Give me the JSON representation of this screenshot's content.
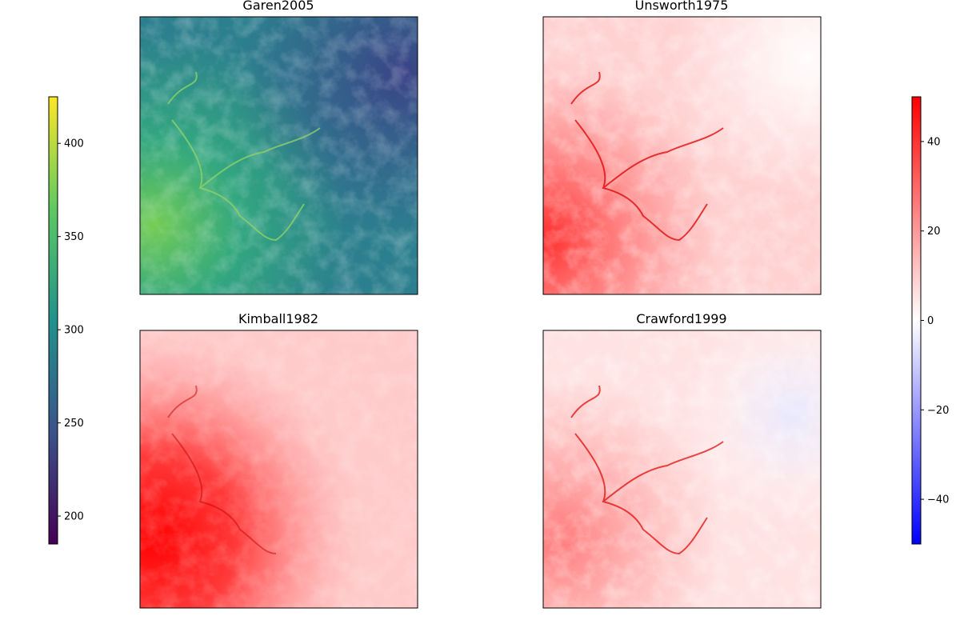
{
  "chart_data": [
    {
      "type": "heatmap",
      "title": "Garen2005",
      "xlabel": "",
      "ylabel": "",
      "grid": false,
      "colormap": "viridis",
      "shared_colorbar": "left",
      "colorbar_range": [
        185,
        425
      ],
      "description_of_values": "gridded raster, higher values along incised valleys in the west/southwest, lower values in the northeast"
    },
    {
      "type": "heatmap",
      "title": "Unsworth1975",
      "xlabel": "",
      "ylabel": "",
      "grid": false,
      "colormap": "bwr",
      "shared_colorbar": "right",
      "colorbar_range": [
        -50,
        50
      ],
      "description_of_values": "mostly positive differences; strongest (near 50) in the southwest and along valleys, near 0 in the northeast"
    },
    {
      "type": "heatmap",
      "title": "Kimball1982",
      "xlabel": "",
      "ylabel": "",
      "grid": false,
      "colormap": "bwr",
      "shared_colorbar": "right",
      "colorbar_range": [
        -50,
        50
      ],
      "description_of_values": "all positive; saturated (about 50) in the southwest, decreasing to about 10 toward the northeast"
    },
    {
      "type": "heatmap",
      "title": "Crawford1999",
      "xlabel": "",
      "ylabel": "",
      "grid": false,
      "colormap": "bwr",
      "shared_colorbar": "right",
      "colorbar_range": [
        -50,
        50
      ],
      "description_of_values": "positive along valleys and in the southwest; slightly negative (about -10) patches in the east"
    }
  ],
  "colorbars": {
    "left": {
      "colormap": "viridis",
      "range": [
        185,
        425
      ],
      "ticks": [
        "200",
        "250",
        "300",
        "350",
        "400"
      ],
      "tick_values": [
        200,
        250,
        300,
        350,
        400
      ]
    },
    "right": {
      "colormap": "bwr",
      "range": [
        -50,
        50
      ],
      "ticks": [
        "−40",
        "−20",
        "0",
        "20",
        "40"
      ],
      "tick_values": [
        -40,
        -20,
        0,
        20,
        40
      ]
    }
  },
  "colors": {
    "viridis_low": "#440154",
    "viridis_mid": "#21918c",
    "viridis_high": "#fde725",
    "bwr_low": "#0000ff",
    "bwr_mid": "#ffffff",
    "bwr_high": "#ff0000"
  }
}
